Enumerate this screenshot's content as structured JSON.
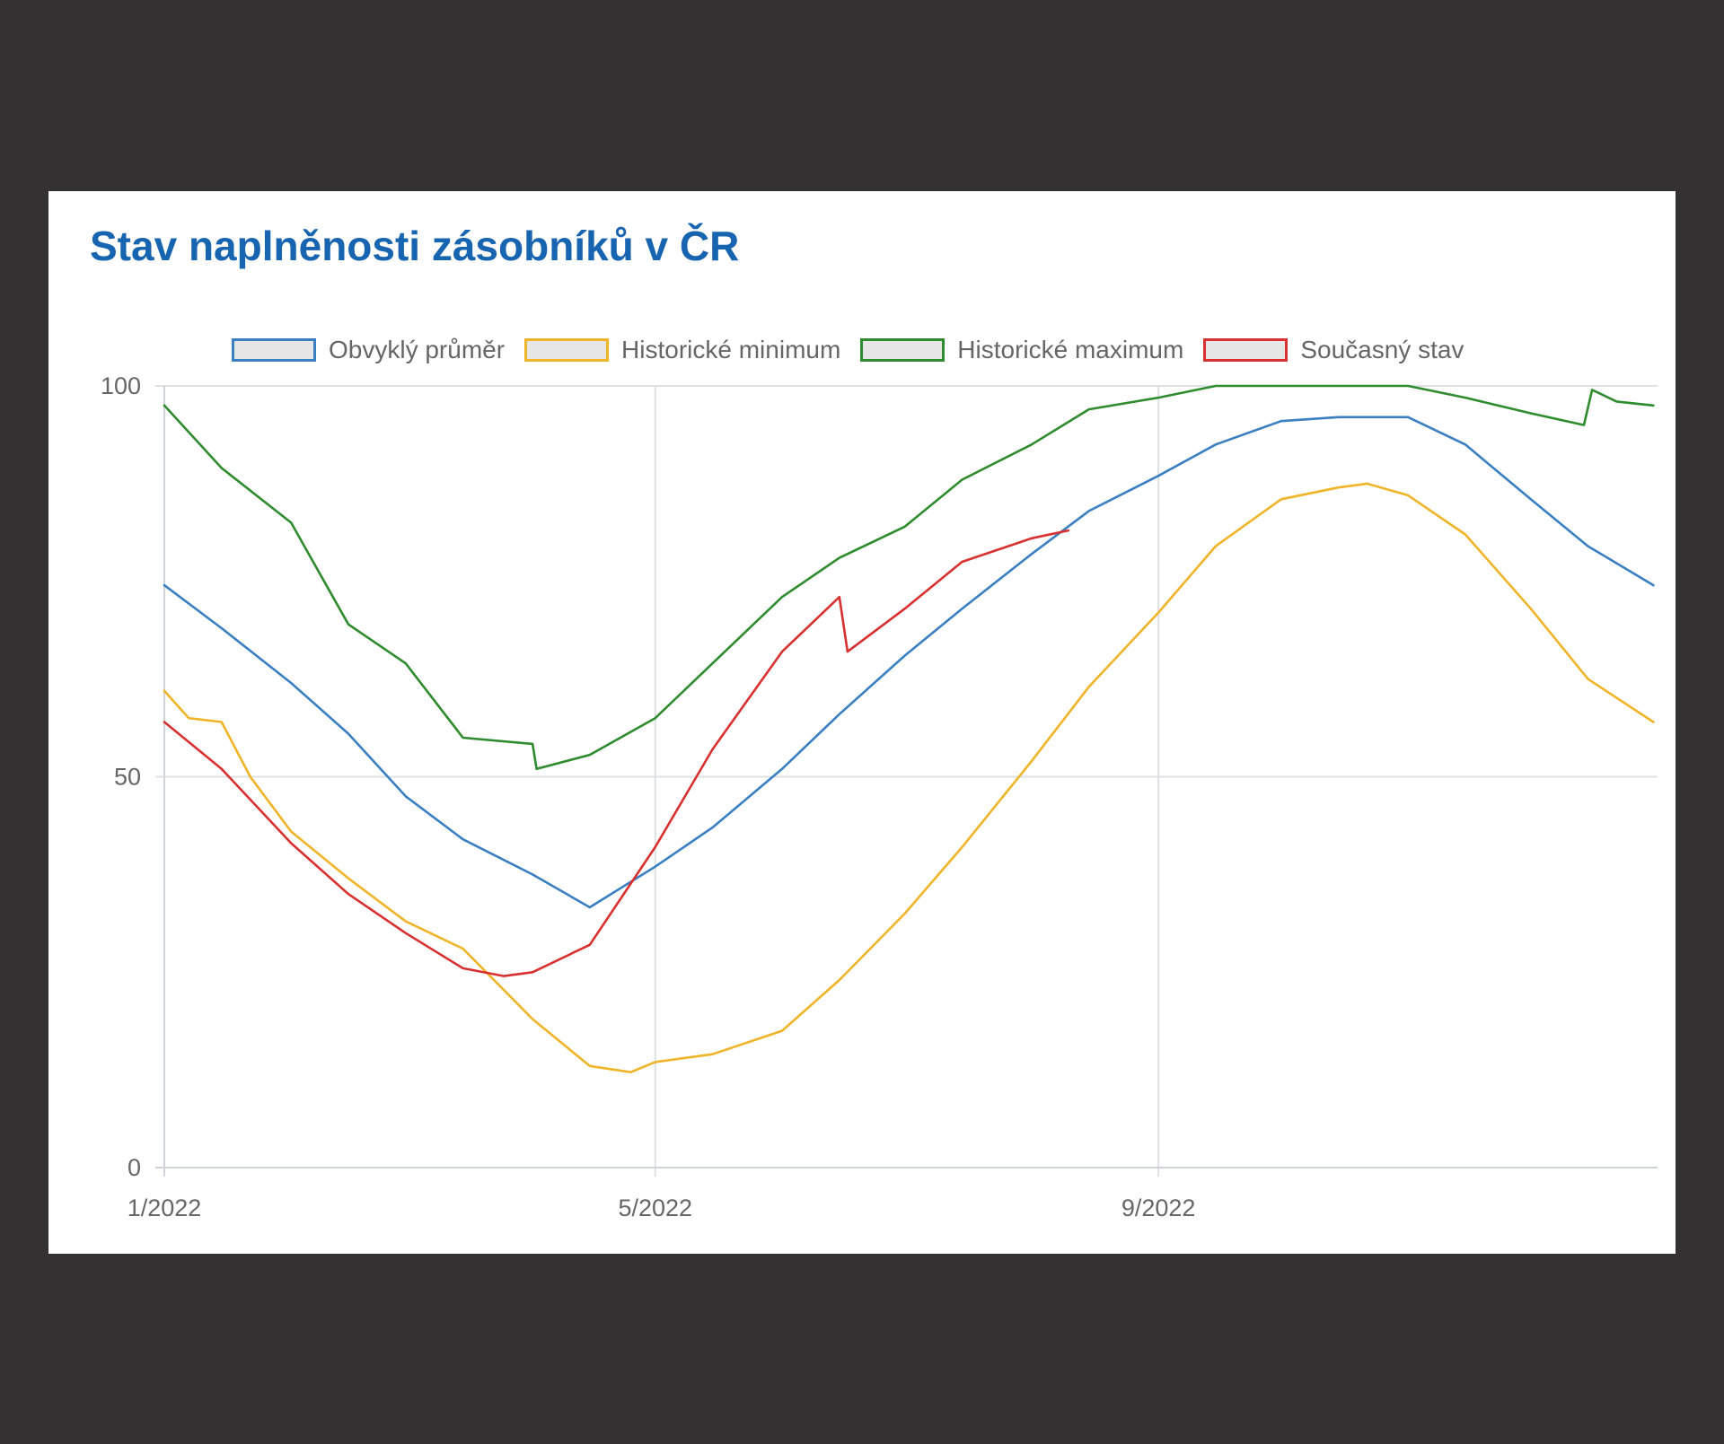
{
  "title": "Stav naplněnosti zásobníků v ČR",
  "legend": [
    {
      "label": "Obvyklý průměr",
      "color": "#3a7fc1"
    },
    {
      "label": "Historické minimum",
      "color": "#f0b429"
    },
    {
      "label": "Historické maximum",
      "color": "#2e8b2e"
    },
    {
      "label": "Současný stav",
      "color": "#d93030"
    }
  ],
  "chart_data": {
    "type": "line",
    "title": "Stav naplněnosti zásobníků v ČR",
    "xlabel": "",
    "ylabel": "",
    "x_tick_labels": [
      "1/2022",
      "5/2022",
      "9/2022"
    ],
    "y_tick_labels": [
      "0",
      "50",
      "100"
    ],
    "ylim": [
      0,
      100
    ],
    "xlim": [
      "2022-01-01",
      "2022-12-31"
    ],
    "grid": true,
    "legend_position": "top",
    "series": [
      {
        "name": "Obvyklý průměr",
        "color": "#3a7fc1",
        "points": [
          [
            "2022-01-01",
            74.5
          ],
          [
            "2022-01-15",
            69
          ],
          [
            "2022-02-01",
            62
          ],
          [
            "2022-02-15",
            55.5
          ],
          [
            "2022-03-01",
            47.5
          ],
          [
            "2022-03-15",
            42
          ],
          [
            "2022-04-01",
            37.5
          ],
          [
            "2022-04-15",
            33.3
          ],
          [
            "2022-05-01",
            38.5
          ],
          [
            "2022-05-15",
            43.5
          ],
          [
            "2022-06-01",
            51
          ],
          [
            "2022-06-15",
            58
          ],
          [
            "2022-07-01",
            65.5
          ],
          [
            "2022-07-15",
            71.5
          ],
          [
            "2022-08-01",
            78.5
          ],
          [
            "2022-08-15",
            84
          ],
          [
            "2022-09-01",
            88.5
          ],
          [
            "2022-09-15",
            92.5
          ],
          [
            "2022-10-01",
            95.5
          ],
          [
            "2022-10-15",
            96
          ],
          [
            "2022-11-01",
            96
          ],
          [
            "2022-11-15",
            92.5
          ],
          [
            "2022-12-01",
            85.5
          ],
          [
            "2022-12-15",
            79.5
          ],
          [
            "2022-12-31",
            74.5
          ]
        ]
      },
      {
        "name": "Historické minimum",
        "color": "#f0b429",
        "points": [
          [
            "2022-01-01",
            61
          ],
          [
            "2022-01-07",
            57.5
          ],
          [
            "2022-01-15",
            57
          ],
          [
            "2022-01-22",
            50
          ],
          [
            "2022-02-01",
            43
          ],
          [
            "2022-02-15",
            37
          ],
          [
            "2022-03-01",
            31.5
          ],
          [
            "2022-03-15",
            28
          ],
          [
            "2022-04-01",
            19
          ],
          [
            "2022-04-15",
            13
          ],
          [
            "2022-04-25",
            12.2
          ],
          [
            "2022-05-01",
            13.5
          ],
          [
            "2022-05-15",
            14.5
          ],
          [
            "2022-06-01",
            17.5
          ],
          [
            "2022-06-15",
            24
          ],
          [
            "2022-07-01",
            32.5
          ],
          [
            "2022-07-15",
            41
          ],
          [
            "2022-08-01",
            52
          ],
          [
            "2022-08-15",
            61.5
          ],
          [
            "2022-09-01",
            71
          ],
          [
            "2022-09-15",
            79.5
          ],
          [
            "2022-10-01",
            85.5
          ],
          [
            "2022-10-15",
            87
          ],
          [
            "2022-10-22",
            87.5
          ],
          [
            "2022-11-01",
            86
          ],
          [
            "2022-11-15",
            81
          ],
          [
            "2022-12-01",
            71.5
          ],
          [
            "2022-12-15",
            62.5
          ],
          [
            "2022-12-31",
            57
          ]
        ]
      },
      {
        "name": "Historické maximum",
        "color": "#2e8b2e",
        "points": [
          [
            "2022-01-01",
            97.5
          ],
          [
            "2022-01-15",
            89.5
          ],
          [
            "2022-02-01",
            82.5
          ],
          [
            "2022-02-15",
            69.5
          ],
          [
            "2022-03-01",
            64.5
          ],
          [
            "2022-03-15",
            55
          ],
          [
            "2022-04-01",
            54.2
          ],
          [
            "2022-04-02",
            51
          ],
          [
            "2022-04-15",
            52.8
          ],
          [
            "2022-05-01",
            57.5
          ],
          [
            "2022-05-15",
            64.5
          ],
          [
            "2022-06-01",
            73
          ],
          [
            "2022-06-15",
            78
          ],
          [
            "2022-07-01",
            82
          ],
          [
            "2022-07-15",
            88
          ],
          [
            "2022-08-01",
            92.5
          ],
          [
            "2022-08-15",
            97
          ],
          [
            "2022-09-01",
            98.5
          ],
          [
            "2022-09-15",
            100
          ],
          [
            "2022-10-01",
            100
          ],
          [
            "2022-11-01",
            100
          ],
          [
            "2022-11-15",
            98.5
          ],
          [
            "2022-12-01",
            96.5
          ],
          [
            "2022-12-14",
            95
          ],
          [
            "2022-12-16",
            99.5
          ],
          [
            "2022-12-22",
            98
          ],
          [
            "2022-12-31",
            97.5
          ]
        ]
      },
      {
        "name": "Současný stav",
        "color": "#d93030",
        "points": [
          [
            "2022-01-01",
            57
          ],
          [
            "2022-01-15",
            51
          ],
          [
            "2022-02-01",
            41.5
          ],
          [
            "2022-02-15",
            35
          ],
          [
            "2022-03-01",
            30
          ],
          [
            "2022-03-15",
            25.5
          ],
          [
            "2022-03-25",
            24.5
          ],
          [
            "2022-04-01",
            25
          ],
          [
            "2022-04-15",
            28.5
          ],
          [
            "2022-05-01",
            41
          ],
          [
            "2022-05-15",
            53.5
          ],
          [
            "2022-06-01",
            66
          ],
          [
            "2022-06-15",
            73
          ],
          [
            "2022-06-17",
            66
          ],
          [
            "2022-07-01",
            71.5
          ],
          [
            "2022-07-15",
            77.5
          ],
          [
            "2022-08-01",
            80.5
          ],
          [
            "2022-08-10",
            81.5
          ]
        ]
      }
    ]
  }
}
